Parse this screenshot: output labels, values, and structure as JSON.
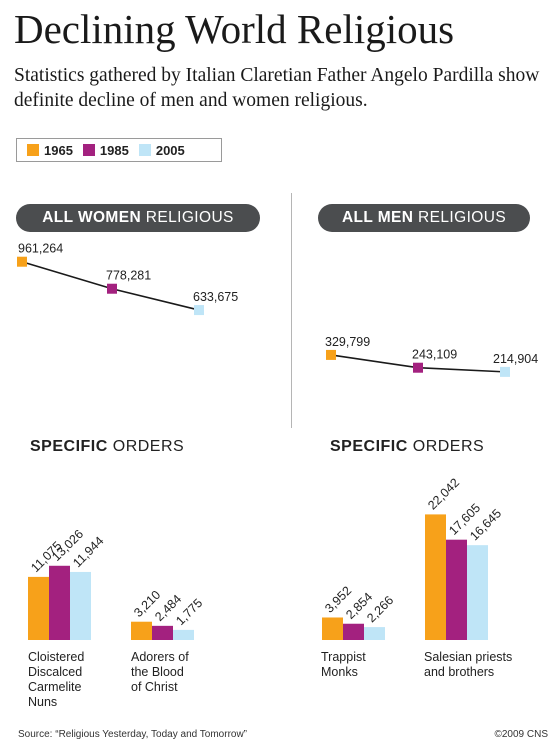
{
  "title": "Declining World Religious",
  "subtitle": "Statistics gathered by Italian Claretian Father Angelo Pardilla show definite decline of men and women religious.",
  "legend": [
    {
      "label": "1965",
      "color": "#f7a11a"
    },
    {
      "label": "1985",
      "color": "#a3217f"
    },
    {
      "label": "2005",
      "color": "#bfe5f7"
    }
  ],
  "panels": {
    "women": {
      "bold": "ALL WOMEN",
      "rest": " RELIGIOUS"
    },
    "men": {
      "bold": "ALL MEN",
      "rest": " RELIGIOUS"
    }
  },
  "specific_orders": {
    "bold": "SPECIFIC",
    "rest": " ORDERS"
  },
  "source": "Source: “Religious Yesterday, Today and Tomorrow”",
  "credit": "©2009 CNS",
  "chart_data": [
    {
      "type": "line",
      "title": "ALL WOMEN RELIGIOUS",
      "x": [
        "1965",
        "1985",
        "2005"
      ],
      "values": [
        961264,
        778281,
        633675
      ],
      "value_labels": [
        "961,264",
        "778,281",
        "633,675"
      ],
      "colors": [
        "#f7a11a",
        "#a3217f",
        "#bfe5f7"
      ]
    },
    {
      "type": "line",
      "title": "ALL MEN RELIGIOUS",
      "x": [
        "1965",
        "1985",
        "2005"
      ],
      "values": [
        329799,
        243109,
        214904
      ],
      "value_labels": [
        "329,799",
        "243,109",
        "214,904"
      ],
      "colors": [
        "#f7a11a",
        "#a3217f",
        "#bfe5f7"
      ]
    },
    {
      "type": "bar",
      "title": "SPECIFIC ORDERS",
      "categories": [
        "Cloistered Discalced Carmelite Nuns",
        "Adorers of the Blood of Christ"
      ],
      "series": [
        {
          "name": "1965",
          "values": [
            11075,
            3210
          ]
        },
        {
          "name": "1985",
          "values": [
            13026,
            2484
          ]
        },
        {
          "name": "2005",
          "values": [
            11944,
            1775
          ]
        }
      ],
      "value_labels": [
        [
          "11,075",
          "13,026",
          "11,944"
        ],
        [
          "3,210",
          "2,484",
          "1,775"
        ]
      ],
      "colors": [
        "#f7a11a",
        "#a3217f",
        "#bfe5f7"
      ]
    },
    {
      "type": "bar",
      "title": "SPECIFIC ORDERS",
      "categories": [
        "Trappist Monks",
        "Salesian priests and brothers"
      ],
      "series": [
        {
          "name": "1965",
          "values": [
            3952,
            22042
          ]
        },
        {
          "name": "1985",
          "values": [
            2854,
            17605
          ]
        },
        {
          "name": "2005",
          "values": [
            2266,
            16645
          ]
        }
      ],
      "value_labels": [
        [
          "3,952",
          "2,854",
          "2,266"
        ],
        [
          "22,042",
          "17,605",
          "16,645"
        ]
      ],
      "colors": [
        "#f7a11a",
        "#a3217f",
        "#bfe5f7"
      ]
    }
  ],
  "category_labels": {
    "women_a": [
      "Cloistered",
      "Discalced",
      "Carmelite",
      "Nuns"
    ],
    "women_b": [
      "Adorers of",
      "the Blood",
      "of Christ"
    ],
    "men_a": [
      "Trappist",
      "Monks"
    ],
    "men_b": [
      "Salesian priests",
      "and brothers"
    ]
  }
}
